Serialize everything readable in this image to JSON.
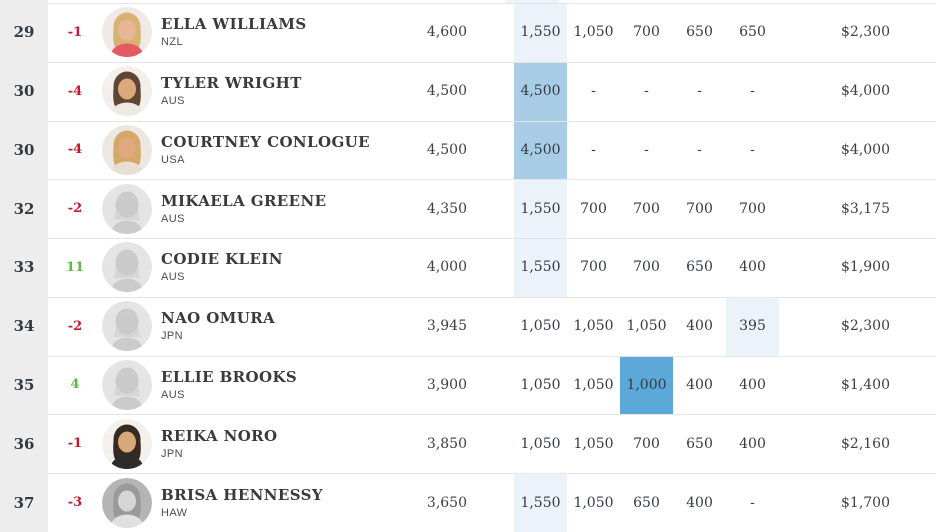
{
  "colors": {
    "highlight_light": "#ebf2f9",
    "highlight_medium": "#a9cde7",
    "highlight_strong": "#5ba8d9",
    "movement_down": "#c6172f",
    "movement_up": "#5cb946",
    "rank_column_bg": "#ededed",
    "row_border": "#e5e5e5"
  },
  "top_partial_row": {
    "event1_highlight": "light"
  },
  "rows": [
    {
      "rank": "29",
      "movement": "-1",
      "movement_dir": "down",
      "name": "ELLA WILLIAMS",
      "country": "NZL",
      "avatar": {
        "type": "photo",
        "bg": "#efe9e7",
        "hair": "#d8b273",
        "skin": "#e6b695",
        "top": "#e45a63"
      },
      "total": "4,600",
      "events": [
        {
          "value": "1,550",
          "highlight": "light"
        },
        {
          "value": "1,050"
        },
        {
          "value": "700"
        },
        {
          "value": "650"
        },
        {
          "value": "650"
        }
      ],
      "money": "$2,300"
    },
    {
      "rank": "30",
      "movement": "-4",
      "movement_dir": "down",
      "name": "TYLER WRIGHT",
      "country": "AUS",
      "avatar": {
        "type": "photo",
        "bg": "#f3efec",
        "hair": "#5f4632",
        "skin": "#dca87c",
        "top": "#efe9e2"
      },
      "total": "4,500",
      "events": [
        {
          "value": "4,500",
          "highlight": "medium"
        },
        {
          "value": "-"
        },
        {
          "value": "-"
        },
        {
          "value": "-"
        },
        {
          "value": "-"
        }
      ],
      "money": "$4,000"
    },
    {
      "rank": "30",
      "movement": "-4",
      "movement_dir": "down",
      "name": "COURTNEY CONLOGUE",
      "country": "USA",
      "avatar": {
        "type": "photo",
        "bg": "#ede7e1",
        "hair": "#d3a967",
        "skin": "#e0a87c",
        "top": "#e9ded2"
      },
      "total": "4,500",
      "events": [
        {
          "value": "4,500",
          "highlight": "medium"
        },
        {
          "value": "-"
        },
        {
          "value": "-"
        },
        {
          "value": "-"
        },
        {
          "value": "-"
        }
      ],
      "money": "$4,000"
    },
    {
      "rank": "32",
      "movement": "-2",
      "movement_dir": "down",
      "name": "MIKAELA GREENE",
      "country": "AUS",
      "avatar": {
        "type": "placeholder",
        "bg": "#e4e4e4",
        "silhouette": "#cbcbcb"
      },
      "total": "4,350",
      "events": [
        {
          "value": "1,550",
          "highlight": "light"
        },
        {
          "value": "700"
        },
        {
          "value": "700"
        },
        {
          "value": "700"
        },
        {
          "value": "700"
        }
      ],
      "money": "$3,175"
    },
    {
      "rank": "33",
      "movement": "11",
      "movement_dir": "up",
      "name": "CODIE KLEIN",
      "country": "AUS",
      "avatar": {
        "type": "placeholder",
        "bg": "#e4e4e4",
        "silhouette": "#cbcbcb"
      },
      "total": "4,000",
      "events": [
        {
          "value": "1,550",
          "highlight": "light"
        },
        {
          "value": "700"
        },
        {
          "value": "700"
        },
        {
          "value": "650"
        },
        {
          "value": "400"
        }
      ],
      "money": "$1,900"
    },
    {
      "rank": "34",
      "movement": "-2",
      "movement_dir": "down",
      "name": "NAO OMURA",
      "country": "JPN",
      "avatar": {
        "type": "placeholder",
        "bg": "#e4e4e4",
        "silhouette": "#cbcbcb"
      },
      "total": "3,945",
      "events": [
        {
          "value": "1,050"
        },
        {
          "value": "1,050"
        },
        {
          "value": "1,050"
        },
        {
          "value": "400"
        },
        {
          "value": "395",
          "highlight": "light"
        }
      ],
      "money": "$2,300"
    },
    {
      "rank": "35",
      "movement": "4",
      "movement_dir": "up",
      "name": "ELLIE BROOKS",
      "country": "AUS",
      "avatar": {
        "type": "placeholder",
        "bg": "#e4e4e4",
        "silhouette": "#cbcbcb"
      },
      "total": "3,900",
      "events": [
        {
          "value": "1,050"
        },
        {
          "value": "1,050"
        },
        {
          "value": "1,000",
          "highlight": "strong"
        },
        {
          "value": "400"
        },
        {
          "value": "400"
        }
      ],
      "money": "$1,400"
    },
    {
      "rank": "36",
      "movement": "-1",
      "movement_dir": "down",
      "name": "REIKA NORO",
      "country": "JPN",
      "avatar": {
        "type": "photo",
        "bg": "#f3f0ed",
        "hair": "#362a22",
        "skin": "#d9a87a",
        "top": "#2e2b29"
      },
      "total": "3,850",
      "events": [
        {
          "value": "1,050"
        },
        {
          "value": "1,050"
        },
        {
          "value": "700"
        },
        {
          "value": "650"
        },
        {
          "value": "400"
        }
      ],
      "money": "$2,160"
    },
    {
      "rank": "37",
      "movement": "-3",
      "movement_dir": "down",
      "name": "BRISA HENNESSY",
      "country": "HAW",
      "avatar": {
        "type": "photo",
        "bg": "#b5b5b5",
        "hair": "#9a9a9a",
        "skin": "#d6d6d6",
        "top": "#e0e0e0"
      },
      "total": "3,650",
      "events": [
        {
          "value": "1,550",
          "highlight": "light"
        },
        {
          "value": "1,050"
        },
        {
          "value": "650"
        },
        {
          "value": "400"
        },
        {
          "value": "-"
        }
      ],
      "money": "$1,700"
    }
  ]
}
